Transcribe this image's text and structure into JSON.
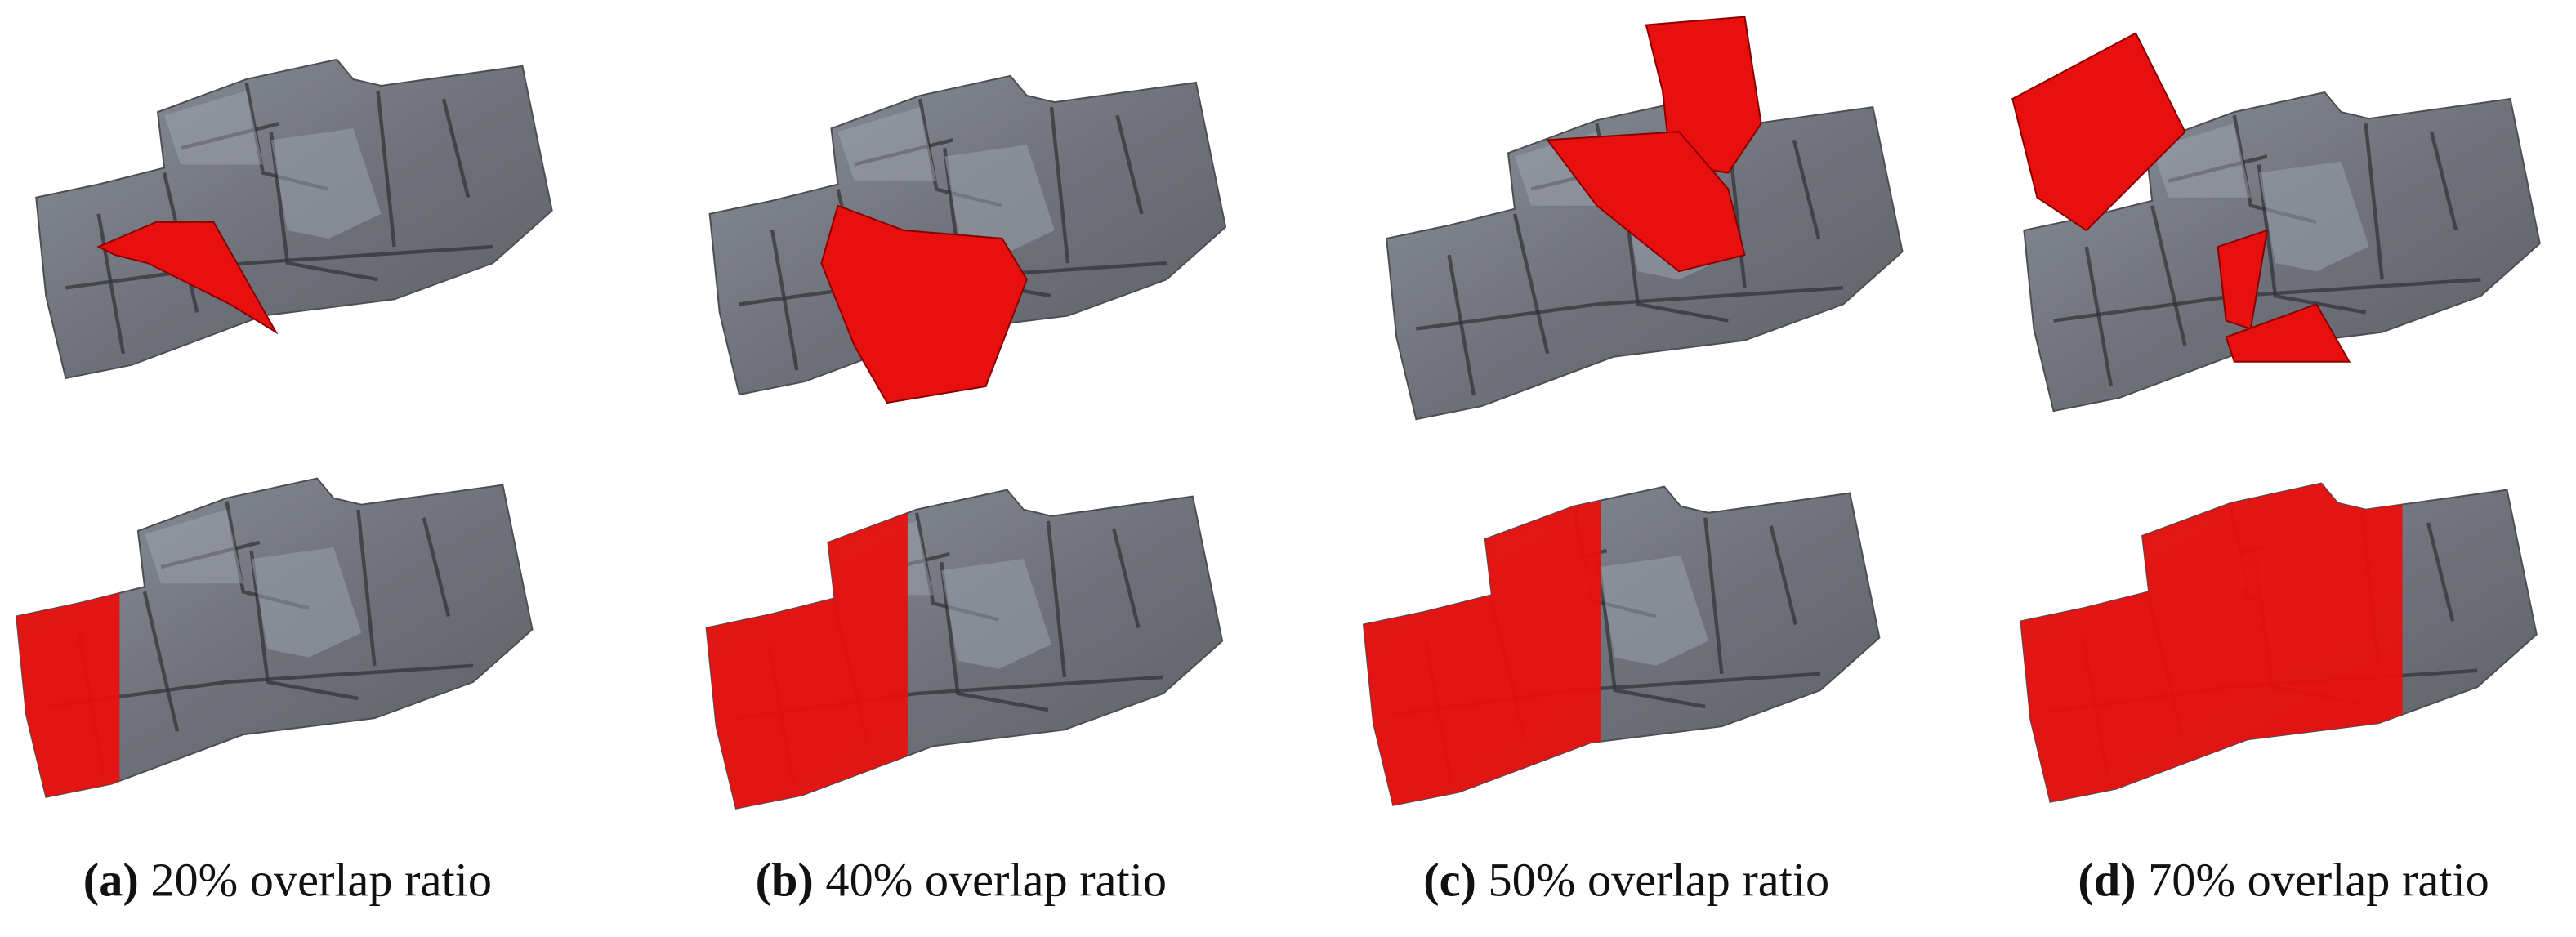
{
  "panels": [
    {
      "label": "(a)",
      "caption": "20% overlap ratio"
    },
    {
      "label": "(b)",
      "caption": "40% overlap ratio"
    },
    {
      "label": "(c)",
      "caption": "50% overlap ratio"
    },
    {
      "label": "(d)",
      "caption": "70% overlap ratio"
    }
  ]
}
